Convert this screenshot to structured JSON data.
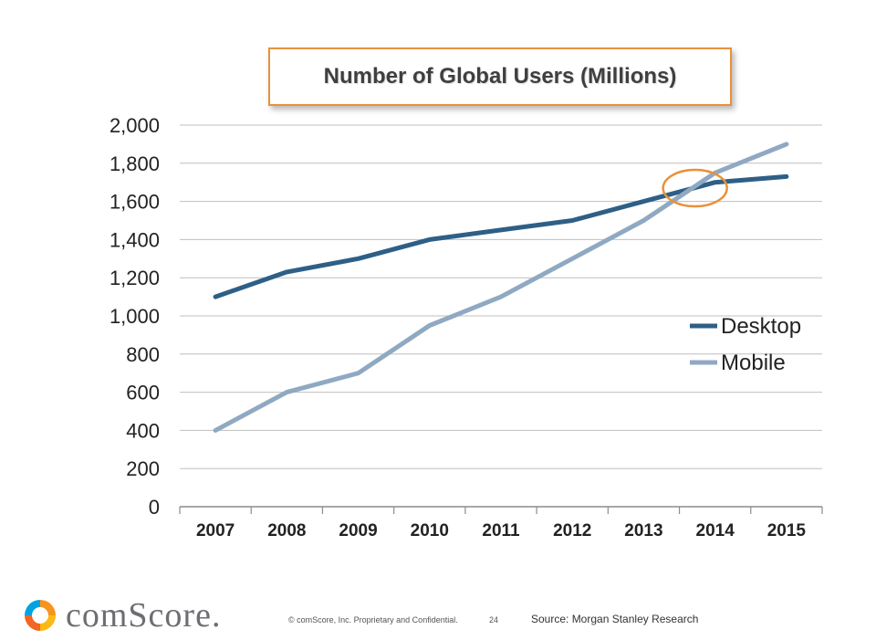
{
  "chart_data": {
    "type": "line",
    "title": "Number of Global Users (Millions)",
    "categories": [
      "2007",
      "2008",
      "2009",
      "2010",
      "2011",
      "2012",
      "2013",
      "2014",
      "2015"
    ],
    "ylim": [
      0,
      2000
    ],
    "yticks": [
      0,
      200,
      400,
      600,
      800,
      1000,
      1200,
      1400,
      1600,
      1800,
      2000
    ],
    "ytick_labels": [
      "0",
      "200",
      "400",
      "600",
      "800",
      "1,000",
      "1,200",
      "1,400",
      "1,600",
      "1,800",
      "2,000"
    ],
    "grid": true,
    "legend_position": "right",
    "series": [
      {
        "name": "Desktop",
        "color": "#2e5f86",
        "values": [
          1100,
          1230,
          1300,
          1400,
          1450,
          1500,
          1600,
          1700,
          1730
        ]
      },
      {
        "name": "Mobile",
        "color": "#8fa9c2",
        "values": [
          400,
          600,
          700,
          950,
          1100,
          1300,
          1500,
          1750,
          1900
        ]
      }
    ],
    "annotation": {
      "type": "circle",
      "x": 2014,
      "y": 1660,
      "color": "#e8913a"
    }
  },
  "footer": {
    "logo_text": "comScore.",
    "copyright": "© comScore, Inc.  Proprietary and Confidential.",
    "page_number": "24",
    "source": "Source: Morgan Stanley Research"
  },
  "colors": {
    "title_border": "#e8913a",
    "grid": "#bfbfbf",
    "axis_text": "#222222"
  }
}
